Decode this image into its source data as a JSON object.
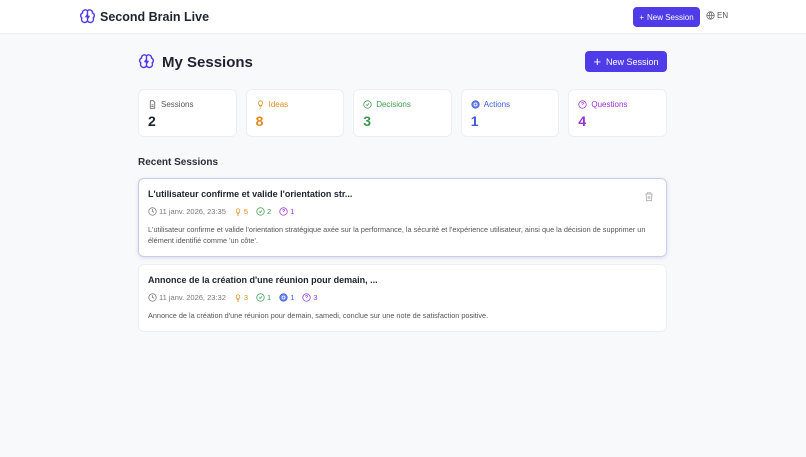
{
  "app": {
    "title": "Second Brain Live",
    "new_session": "New Session",
    "lang": "EN"
  },
  "page": {
    "title": "My Sessions",
    "new_session": "New Session",
    "recent_title": "Recent Sessions"
  },
  "colors": {
    "accent": "#4f3ce8",
    "ideas": "#e08a1e",
    "decisions": "#3a9a4a",
    "actions": "#3b5bdb",
    "questions": "#9b30d9"
  },
  "stats": [
    {
      "label": "Sessions",
      "value": "2",
      "icon": "file-icon"
    },
    {
      "label": "Ideas",
      "value": "8",
      "icon": "lightbulb-icon"
    },
    {
      "label": "Decisions",
      "value": "3",
      "icon": "check-circle-icon"
    },
    {
      "label": "Actions",
      "value": "1",
      "icon": "target-icon"
    },
    {
      "label": "Questions",
      "value": "4",
      "icon": "question-circle-icon"
    }
  ],
  "sessions": [
    {
      "title": "L'utilisateur confirme et valide l'orientation str...",
      "date": "11 janv. 2026, 23:35",
      "ideas": "5",
      "decisions": "2",
      "questions": "1",
      "description": "L'utilisateur confirme et valide l'orientation stratégique axée sur la performance, la sécurité et l'expérience utilisateur, ainsi que la décision de supprimer un élément identifié comme 'un côte'."
    },
    {
      "title": "Annonce de la création d'une réunion pour demain, ...",
      "date": "11 janv. 2026, 23:32",
      "ideas": "3",
      "decisions": "1",
      "actions": "1",
      "questions": "3",
      "description": "Annonce de la création d'une réunion pour demain, samedi, conclue sur une note de satisfaction positive."
    }
  ]
}
